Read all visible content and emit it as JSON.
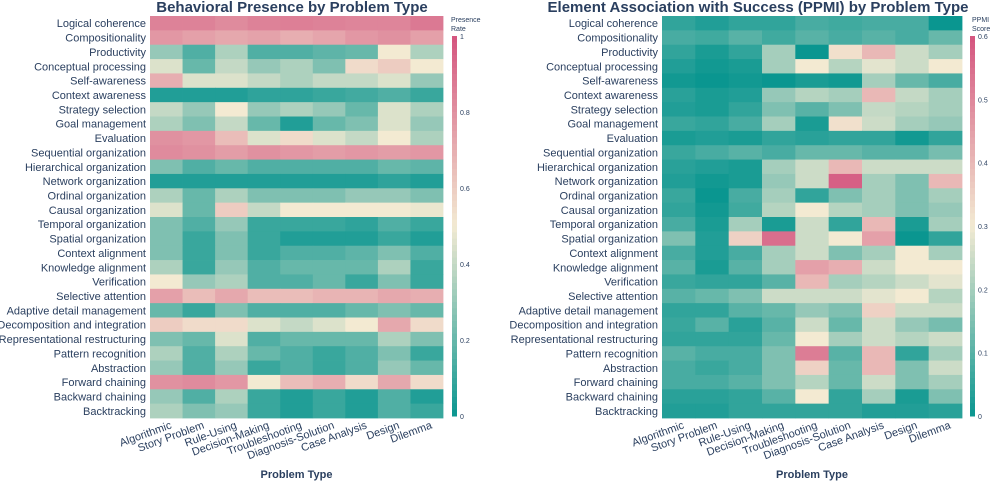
{
  "colors": {
    "low": "#0a9690",
    "mid": "#f3ead2",
    "high": "#d4557f",
    "text": "#2a3f5f",
    "title": "#2a3f5f"
  },
  "shared": {
    "rows": [
      "Logical coherence",
      "Compositionality",
      "Productivity",
      "Conceptual processing",
      "Self-awareness",
      "Context awareness",
      "Strategy selection",
      "Goal management",
      "Evaluation",
      "Sequential organization",
      "Hierarchical organization",
      "Network organization",
      "Ordinal organization",
      "Causal organization",
      "Temporal organization",
      "Spatial organization",
      "Context alignment",
      "Knowledge alignment",
      "Verification",
      "Selective attention",
      "Adaptive detail management",
      "Decomposition and integration",
      "Representational restructuring",
      "Pattern recognition",
      "Abstraction",
      "Forward chaining",
      "Backward chaining",
      "Backtracking"
    ],
    "columns": [
      "Algorithmic",
      "Story Problem",
      "Rule-Using",
      "Decision-Making",
      "Troubleshooting",
      "Diagnosis-Solution",
      "Case Analysis",
      "Design",
      "Dilemma"
    ],
    "xlabel": "Problem Type"
  },
  "chart_data": [
    {
      "type": "heatmap",
      "title": "Behavioral Presence by Problem Type",
      "xlabel": "Problem Type",
      "colorbar_title_line1": "Presence",
      "colorbar_title_line2": "Rate",
      "zlim": [
        0,
        1
      ],
      "colorbar_ticks": [
        "0",
        "0.2",
        "0.4",
        "0.6",
        "0.8",
        "1"
      ],
      "values": [
        [
          0.85,
          0.85,
          0.82,
          0.85,
          0.86,
          0.85,
          0.84,
          0.84,
          0.88
        ],
        [
          0.78,
          0.75,
          0.72,
          0.74,
          0.7,
          0.73,
          0.78,
          0.8,
          0.75
        ],
        [
          0.3,
          0.15,
          0.35,
          0.15,
          0.15,
          0.18,
          0.2,
          0.5,
          0.35
        ],
        [
          0.45,
          0.2,
          0.4,
          0.3,
          0.35,
          0.25,
          0.55,
          0.6,
          0.5
        ],
        [
          0.7,
          0.45,
          0.45,
          0.4,
          0.35,
          0.4,
          0.4,
          0.45,
          0.3
        ],
        [
          0.05,
          0.05,
          0.05,
          0.08,
          0.08,
          0.1,
          0.12,
          0.15,
          0.1
        ],
        [
          0.4,
          0.3,
          0.5,
          0.3,
          0.35,
          0.3,
          0.2,
          0.45,
          0.35
        ],
        [
          0.35,
          0.25,
          0.4,
          0.2,
          0.05,
          0.2,
          0.25,
          0.45,
          0.3
        ],
        [
          0.8,
          0.78,
          0.65,
          0.45,
          0.55,
          0.45,
          0.4,
          0.5,
          0.35
        ],
        [
          0.82,
          0.8,
          0.76,
          0.8,
          0.78,
          0.76,
          0.78,
          0.76,
          0.78
        ],
        [
          0.25,
          0.15,
          0.2,
          0.15,
          0.15,
          0.15,
          0.15,
          0.2,
          0.18
        ],
        [
          0.05,
          0.05,
          0.05,
          0.05,
          0.05,
          0.05,
          0.05,
          0.08,
          0.05
        ],
        [
          0.35,
          0.2,
          0.35,
          0.25,
          0.25,
          0.25,
          0.3,
          0.3,
          0.25
        ],
        [
          0.45,
          0.2,
          0.6,
          0.4,
          0.5,
          0.5,
          0.5,
          0.5,
          0.48
        ],
        [
          0.25,
          0.15,
          0.3,
          0.1,
          0.1,
          0.1,
          0.08,
          0.15,
          0.1
        ],
        [
          0.25,
          0.1,
          0.25,
          0.1,
          0.05,
          0.05,
          0.05,
          0.1,
          0.05
        ],
        [
          0.25,
          0.1,
          0.25,
          0.1,
          0.15,
          0.15,
          0.18,
          0.25,
          0.15
        ],
        [
          0.35,
          0.1,
          0.3,
          0.15,
          0.2,
          0.2,
          0.2,
          0.35,
          0.1
        ],
        [
          0.5,
          0.3,
          0.35,
          0.15,
          0.15,
          0.2,
          0.1,
          0.25,
          0.1
        ],
        [
          0.75,
          0.65,
          0.72,
          0.65,
          0.65,
          0.68,
          0.68,
          0.72,
          0.7
        ],
        [
          0.2,
          0.1,
          0.25,
          0.15,
          0.15,
          0.15,
          0.2,
          0.25,
          0.2
        ],
        [
          0.6,
          0.55,
          0.55,
          0.45,
          0.4,
          0.45,
          0.5,
          0.72,
          0.55
        ],
        [
          0.25,
          0.2,
          0.45,
          0.15,
          0.2,
          0.2,
          0.2,
          0.35,
          0.25
        ],
        [
          0.35,
          0.15,
          0.35,
          0.2,
          0.15,
          0.1,
          0.15,
          0.25,
          0.1
        ],
        [
          0.3,
          0.15,
          0.3,
          0.1,
          0.15,
          0.1,
          0.15,
          0.3,
          0.2
        ],
        [
          0.8,
          0.82,
          0.78,
          0.5,
          0.65,
          0.7,
          0.55,
          0.72,
          0.55
        ],
        [
          0.3,
          0.15,
          0.35,
          0.1,
          0.05,
          0.1,
          0.05,
          0.15,
          0.05
        ],
        [
          0.35,
          0.25,
          0.3,
          0.1,
          0.05,
          0.1,
          0.05,
          0.15,
          0.1
        ]
      ]
    },
    {
      "type": "heatmap",
      "title": "Element Association with Success (PPMI) by Problem Type",
      "xlabel": "Problem Type",
      "colorbar_title_line1": "PPMI",
      "colorbar_title_line2": "Score",
      "zlim": [
        0,
        0.6
      ],
      "colorbar_ticks": [
        "0",
        "0.1",
        "0.2",
        "0.3",
        "0.4",
        "0.5",
        "0.6"
      ],
      "values": [
        [
          0.05,
          0.03,
          0.05,
          0.05,
          0.08,
          0.07,
          0.08,
          0.08,
          0.0
        ],
        [
          0.08,
          0.07,
          0.1,
          0.07,
          0.1,
          0.08,
          0.1,
          0.08,
          0.12
        ],
        [
          0.05,
          0.02,
          0.05,
          0.2,
          0.0,
          0.32,
          0.4,
          0.25,
          0.2
        ],
        [
          0.03,
          0.01,
          0.02,
          0.2,
          0.3,
          0.22,
          0.28,
          0.25,
          0.3
        ],
        [
          0.01,
          0.0,
          0.01,
          0.0,
          0.02,
          0.01,
          0.2,
          0.12,
          0.08
        ],
        [
          0.04,
          0.02,
          0.03,
          0.18,
          0.22,
          0.2,
          0.4,
          0.24,
          0.2
        ],
        [
          0.03,
          0.02,
          0.05,
          0.15,
          0.1,
          0.15,
          0.24,
          0.22,
          0.2
        ],
        [
          0.06,
          0.05,
          0.08,
          0.2,
          0.02,
          0.32,
          0.25,
          0.2,
          0.18
        ],
        [
          0.02,
          0.03,
          0.02,
          0.05,
          0.04,
          0.05,
          0.05,
          0.01,
          0.05
        ],
        [
          0.06,
          0.08,
          0.1,
          0.08,
          0.12,
          0.12,
          0.1,
          0.1,
          0.14
        ],
        [
          0.04,
          0.03,
          0.02,
          0.2,
          0.25,
          0.4,
          0.25,
          0.25,
          0.25
        ],
        [
          0.03,
          0.01,
          0.02,
          0.18,
          0.25,
          0.58,
          0.2,
          0.15,
          0.4
        ],
        [
          0.06,
          0.0,
          0.08,
          0.2,
          0.05,
          0.15,
          0.2,
          0.15,
          0.2
        ],
        [
          0.05,
          0.01,
          0.07,
          0.22,
          0.3,
          0.22,
          0.2,
          0.15,
          0.18
        ],
        [
          0.08,
          0.02,
          0.2,
          0.02,
          0.25,
          0.05,
          0.4,
          0.02,
          0.2
        ],
        [
          0.15,
          0.03,
          0.35,
          0.55,
          0.25,
          0.3,
          0.45,
          0.0,
          0.05
        ],
        [
          0.08,
          0.03,
          0.08,
          0.2,
          0.25,
          0.15,
          0.2,
          0.3,
          0.2
        ],
        [
          0.1,
          0.02,
          0.1,
          0.2,
          0.45,
          0.42,
          0.25,
          0.3,
          0.3
        ],
        [
          0.06,
          0.05,
          0.05,
          0.1,
          0.4,
          0.2,
          0.22,
          0.25,
          0.28
        ],
        [
          0.1,
          0.12,
          0.15,
          0.25,
          0.25,
          0.25,
          0.28,
          0.3,
          0.22
        ],
        [
          0.05,
          0.05,
          0.1,
          0.12,
          0.18,
          0.15,
          0.35,
          0.25,
          0.25
        ],
        [
          0.06,
          0.1,
          0.04,
          0.1,
          0.25,
          0.12,
          0.25,
          0.18,
          0.14
        ],
        [
          0.05,
          0.05,
          0.05,
          0.12,
          0.3,
          0.2,
          0.25,
          0.22,
          0.25
        ],
        [
          0.1,
          0.08,
          0.08,
          0.15,
          0.52,
          0.1,
          0.4,
          0.05,
          0.2
        ],
        [
          0.08,
          0.06,
          0.08,
          0.15,
          0.35,
          0.12,
          0.4,
          0.15,
          0.25
        ],
        [
          0.08,
          0.08,
          0.1,
          0.15,
          0.22,
          0.12,
          0.25,
          0.15,
          0.2
        ],
        [
          0.04,
          0.04,
          0.05,
          0.1,
          0.3,
          0.05,
          0.2,
          0.02,
          0.15
        ],
        [
          0.03,
          0.03,
          0.05,
          0.05,
          0.05,
          0.05,
          0.03,
          0.03,
          0.04
        ]
      ]
    }
  ]
}
